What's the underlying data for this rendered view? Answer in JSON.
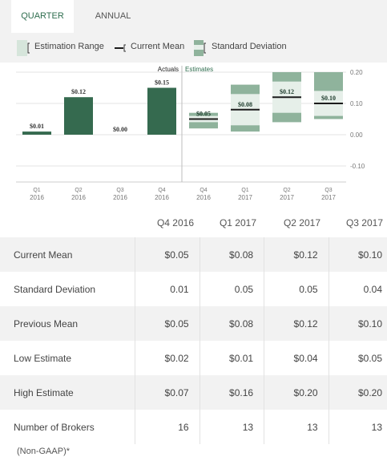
{
  "tabs": [
    {
      "label": "QUARTER",
      "active": true
    },
    {
      "label": "ANNUAL",
      "active": false
    }
  ],
  "legend": {
    "estimation_range": "Estimation Range",
    "current_mean": "Current Mean",
    "standard_deviation": "Standard Deviation"
  },
  "colors": {
    "actual_bar": "#356a4f",
    "estimate_range": "#8fb39c",
    "estimate_dev": "#e6efe9",
    "mean_line": "#1c1c1c",
    "accent": "#2f6e4f"
  },
  "chart_data": {
    "type": "bar",
    "section_labels": {
      "actuals": "Actuals",
      "estimates": "Estimates"
    },
    "categories": [
      {
        "q": "Q1",
        "y": "2016"
      },
      {
        "q": "Q2",
        "y": "2016"
      },
      {
        "q": "Q3",
        "y": "2016"
      },
      {
        "q": "Q4",
        "y": "2016"
      },
      {
        "q": "Q4",
        "y": "2016"
      },
      {
        "q": "Q1",
        "y": "2017"
      },
      {
        "q": "Q2",
        "y": "2017"
      },
      {
        "q": "Q3",
        "y": "2017"
      }
    ],
    "actuals": [
      {
        "value": 0.01,
        "label": "$0.01"
      },
      {
        "value": 0.12,
        "label": "$0.12"
      },
      {
        "value": 0.0,
        "label": "$0.00"
      },
      {
        "value": 0.15,
        "label": "$0.15"
      }
    ],
    "estimates": [
      {
        "mean": 0.05,
        "low": 0.02,
        "high": 0.07,
        "std": 0.01,
        "label": "$0.05"
      },
      {
        "mean": 0.08,
        "low": 0.01,
        "high": 0.16,
        "std": 0.05,
        "label": "$0.08"
      },
      {
        "mean": 0.12,
        "low": 0.04,
        "high": 0.2,
        "std": 0.05,
        "label": "$0.12"
      },
      {
        "mean": 0.1,
        "low": 0.05,
        "high": 0.2,
        "std": 0.04,
        "label": "$0.10"
      }
    ],
    "yticks": [
      "0.20",
      "0.10",
      "0.00",
      "-0.10"
    ],
    "ylim": [
      -0.12,
      0.2
    ]
  },
  "table": {
    "headers": [
      "Q4 2016",
      "Q1 2017",
      "Q2 2017",
      "Q3 2017"
    ],
    "rows": [
      {
        "label": "Current Mean",
        "values": [
          "$0.05",
          "$0.08",
          "$0.12",
          "$0.10"
        ]
      },
      {
        "label": "Standard Deviation",
        "values": [
          "0.01",
          "0.05",
          "0.05",
          "0.04"
        ]
      },
      {
        "label": "Previous Mean",
        "values": [
          "$0.05",
          "$0.08",
          "$0.12",
          "$0.10"
        ]
      },
      {
        "label": "Low Estimate",
        "values": [
          "$0.02",
          "$0.01",
          "$0.04",
          "$0.05"
        ]
      },
      {
        "label": "High Estimate",
        "values": [
          "$0.07",
          "$0.16",
          "$0.20",
          "$0.20"
        ]
      },
      {
        "label": "Number of Brokers",
        "values": [
          "16",
          "13",
          "13",
          "13"
        ]
      }
    ]
  },
  "footnote": "(Non-GAAP)*"
}
